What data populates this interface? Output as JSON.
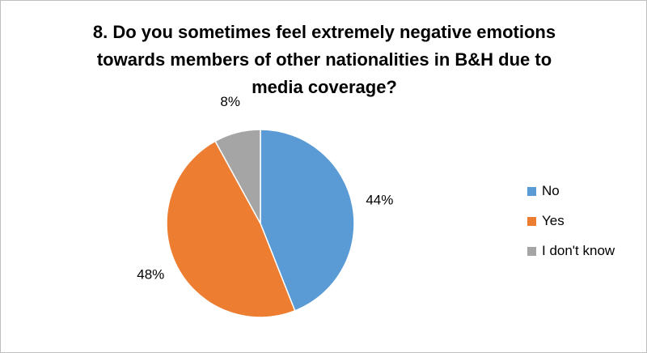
{
  "chart_data": {
    "type": "pie",
    "title": "8. Do you sometimes feel extremely negative emotions towards members of other nationalities in B&H due to media coverage?",
    "categories": [
      "No",
      "Yes",
      "I don't know"
    ],
    "values": [
      44,
      48,
      8
    ],
    "data_labels": [
      "44%",
      "48%",
      "8%"
    ],
    "colors": [
      "#5b9bd5",
      "#ed7d31",
      "#a5a5a5"
    ],
    "legend_position": "right",
    "start_angle_deg": 0,
    "direction": "clockwise"
  }
}
